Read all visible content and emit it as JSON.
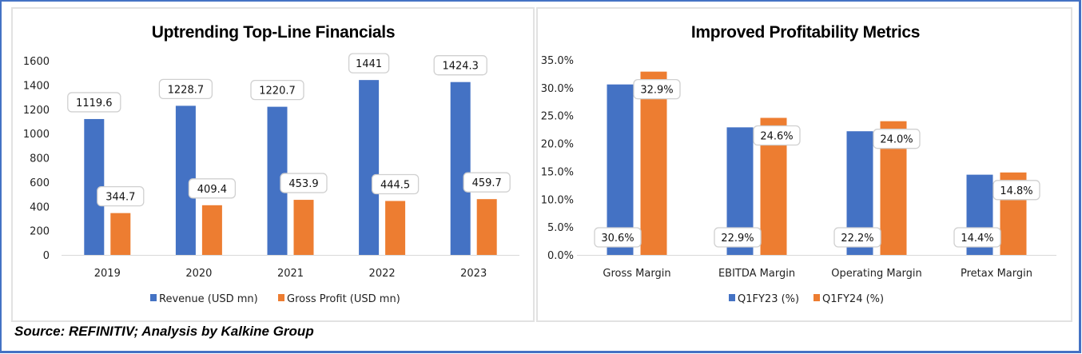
{
  "source": "Source: REFINITIV; Analysis by Kalkine Group",
  "colors": {
    "series1": "#4472C4",
    "series2": "#ED7D31",
    "frame": "#4472C4"
  },
  "chart_data": [
    {
      "type": "bar",
      "title": "Uptrending Top-Line Financials",
      "xlabel": "",
      "ylabel": "",
      "categories": [
        "2019",
        "2020",
        "2021",
        "2022",
        "2023"
      ],
      "series": [
        {
          "name": "Revenue (USD mn)",
          "values": [
            1119.6,
            1228.7,
            1220.7,
            1441,
            1424.3
          ],
          "labels": [
            "1119.6",
            "1228.7",
            "1220.7",
            "1441",
            "1424.3"
          ]
        },
        {
          "name": "Gross Profit (USD mn)",
          "values": [
            344.7,
            409.4,
            453.9,
            444.5,
            459.7
          ],
          "labels": [
            "344.7",
            "409.4",
            "453.9",
            "444.5",
            "459.7"
          ]
        }
      ],
      "ylim": [
        0,
        1600
      ],
      "yticks": [
        0,
        200,
        400,
        600,
        800,
        1000,
        1200,
        1400,
        1600
      ],
      "ytick_labels": [
        "0",
        "200",
        "400",
        "600",
        "800",
        "1000",
        "1200",
        "1400",
        "1600"
      ],
      "grid": false,
      "legend": "bottom"
    },
    {
      "type": "bar",
      "title": "Improved Profitability Metrics",
      "xlabel": "",
      "ylabel": "",
      "categories": [
        "Gross Margin",
        "EBITDA Margin",
        "Operating Margin",
        "Pretax Margin"
      ],
      "series": [
        {
          "name": "Q1FY23 (%)",
          "values": [
            30.6,
            22.9,
            22.2,
            14.4
          ],
          "labels": [
            "30.6%",
            "22.9%",
            "22.2%",
            "14.4%"
          ]
        },
        {
          "name": "Q1FY24 (%)",
          "values": [
            32.9,
            24.6,
            24.0,
            14.8
          ],
          "labels": [
            "32.9%",
            "24.6%",
            "24.0%",
            "14.8%"
          ]
        }
      ],
      "ylim": [
        0,
        35
      ],
      "yticks": [
        0,
        5,
        10,
        15,
        20,
        25,
        30,
        35
      ],
      "ytick_labels": [
        "0.0%",
        "5.0%",
        "10.0%",
        "15.0%",
        "20.0%",
        "25.0%",
        "30.0%",
        "35.0%"
      ],
      "grid": false,
      "legend": "bottom"
    }
  ]
}
